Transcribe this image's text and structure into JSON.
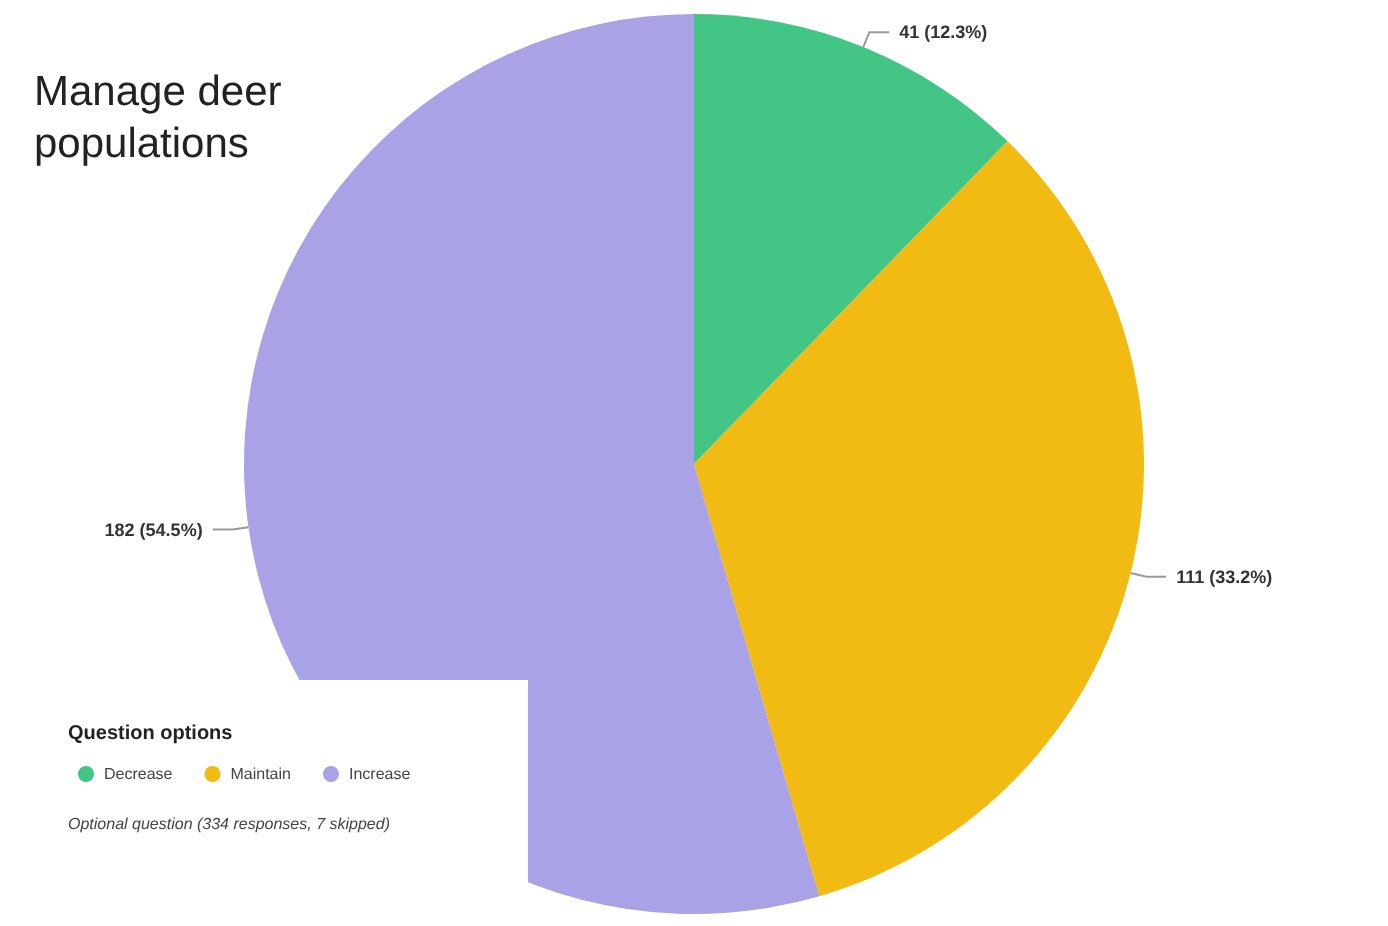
{
  "chart_data": {
    "type": "pie",
    "title": "Manage deer populations",
    "categories": [
      "Decrease",
      "Maintain",
      "Increase"
    ],
    "values": [
      41,
      111,
      182
    ],
    "colors": [
      "#43c585",
      "#f2bb13",
      "#a9a2e6"
    ],
    "value_labels": [
      "41 (12.3%)",
      "111 (33.2%)",
      "182 (54.5%)"
    ],
    "legend": "bottom left",
    "legend_title": "Question options",
    "annotations": [
      "Optional question (334 responses, 7 skipped)"
    ]
  }
}
